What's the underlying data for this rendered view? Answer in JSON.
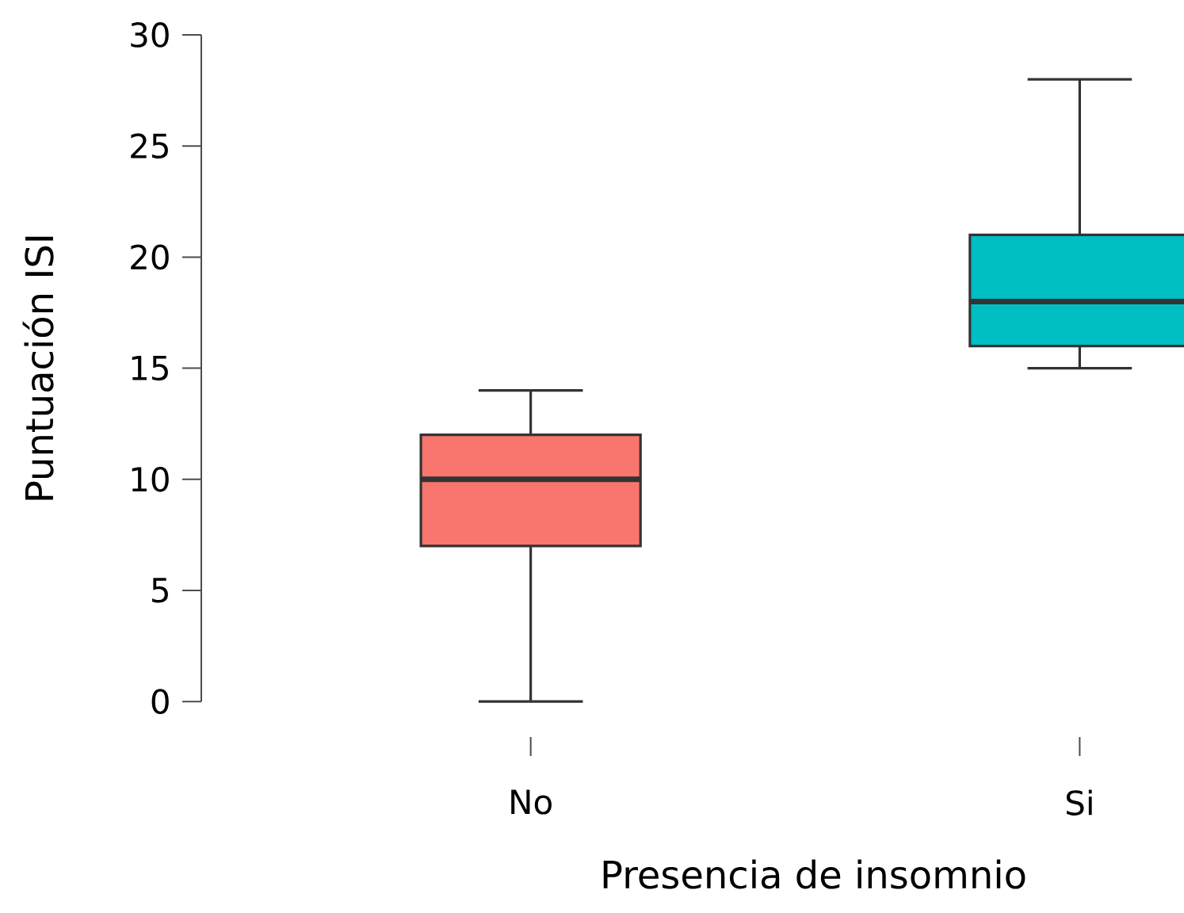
{
  "chart_data": {
    "type": "box",
    "xlabel": "Presencia de insomnio",
    "ylabel": "Puntuación ISI",
    "categories": [
      "No",
      "Si"
    ],
    "boxes": [
      {
        "low": 0,
        "q1": 7,
        "median": 10,
        "q3": 12,
        "high": 14
      },
      {
        "low": 15,
        "q1": 16,
        "median": 18,
        "q3": 21,
        "high": 28
      }
    ],
    "colors": [
      "#f8766d",
      "#00bfc4"
    ],
    "ylim": [
      0,
      30
    ],
    "yticks": [
      0,
      5,
      10,
      15,
      20,
      25,
      30
    ]
  }
}
